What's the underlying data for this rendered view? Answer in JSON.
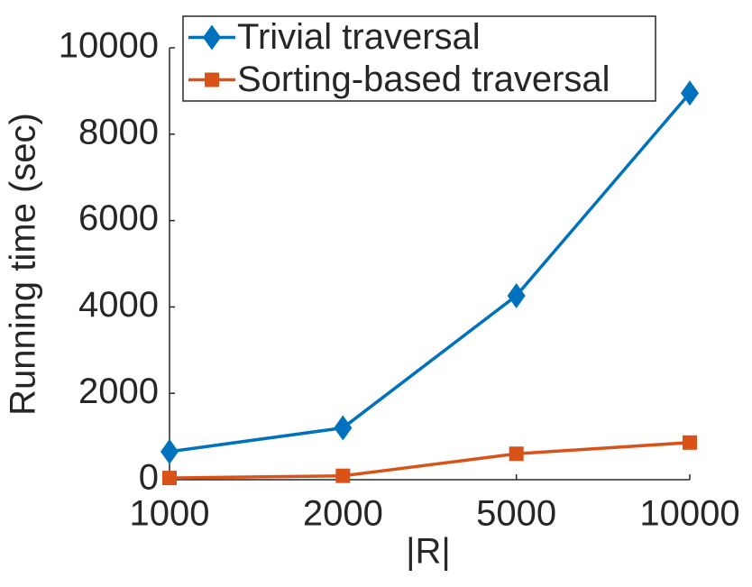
{
  "chart_data": {
    "type": "line",
    "x_label": "|R|",
    "y_label": "Running time (sec)",
    "categories": [
      "1000",
      "2000",
      "5000",
      "10000"
    ],
    "series": [
      {
        "name": "Trivial traversal",
        "color": "#0072bd",
        "marker": "diamond",
        "values": [
          650,
          1200,
          4260,
          8950
        ]
      },
      {
        "name": "Sorting-based traversal",
        "color": "#d95319",
        "marker": "square",
        "values": [
          40,
          90,
          600,
          860
        ]
      }
    ],
    "ylim": [
      0,
      10000
    ],
    "yticks": [
      0,
      2000,
      4000,
      6000,
      8000,
      10000
    ],
    "legend": "upper-left",
    "grid": false
  }
}
